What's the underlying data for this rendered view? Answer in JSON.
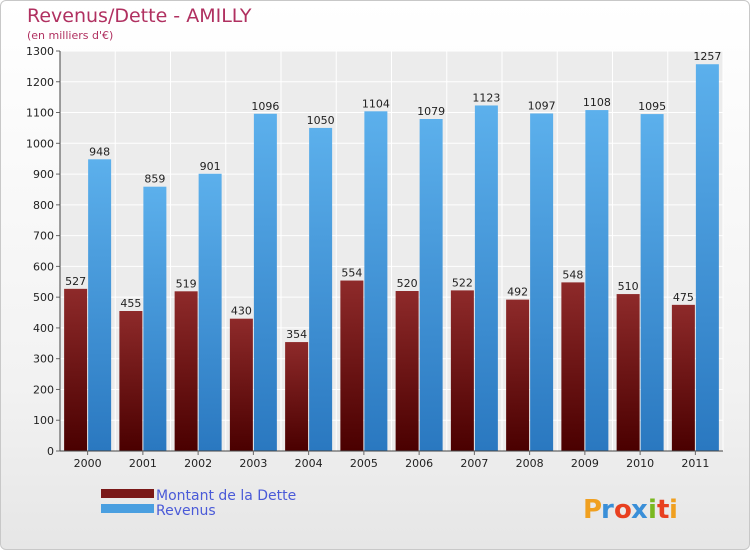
{
  "chart_data": {
    "type": "bar",
    "title": "Revenus/Dette - AMILLY",
    "subtitle": "(en milliers d'€)",
    "categories": [
      "2000",
      "2001",
      "2002",
      "2003",
      "2004",
      "2005",
      "2006",
      "2007",
      "2008",
      "2009",
      "2010",
      "2011"
    ],
    "series": [
      {
        "name": "Montant de la Dette",
        "color": "#7a1818",
        "values": [
          527,
          455,
          519,
          430,
          354,
          554,
          520,
          522,
          492,
          548,
          510,
          475
        ]
      },
      {
        "name": "Revenus",
        "color": "#4a9fe0",
        "values": [
          948,
          859,
          901,
          1096,
          1050,
          1104,
          1079,
          1123,
          1097,
          1108,
          1095,
          1257
        ]
      }
    ],
    "yticks": [
      0,
      100,
      200,
      300,
      400,
      500,
      600,
      700,
      800,
      900,
      1000,
      1100,
      1200,
      1300
    ],
    "ylim": [
      0,
      1300
    ],
    "grid": true,
    "legend_position": "bottom-left"
  },
  "brand": {
    "name": "Proxiti",
    "letters": [
      {
        "char": "P",
        "color": "#f0a020"
      },
      {
        "char": "r",
        "color": "#3a8fd8"
      },
      {
        "char": "o",
        "color": "#e84020"
      },
      {
        "char": "x",
        "color": "#3a8fd8"
      },
      {
        "char": "i",
        "color": "#7ab820"
      },
      {
        "char": "t",
        "color": "#e84020"
      },
      {
        "char": "i",
        "color": "#f0a020"
      }
    ]
  }
}
